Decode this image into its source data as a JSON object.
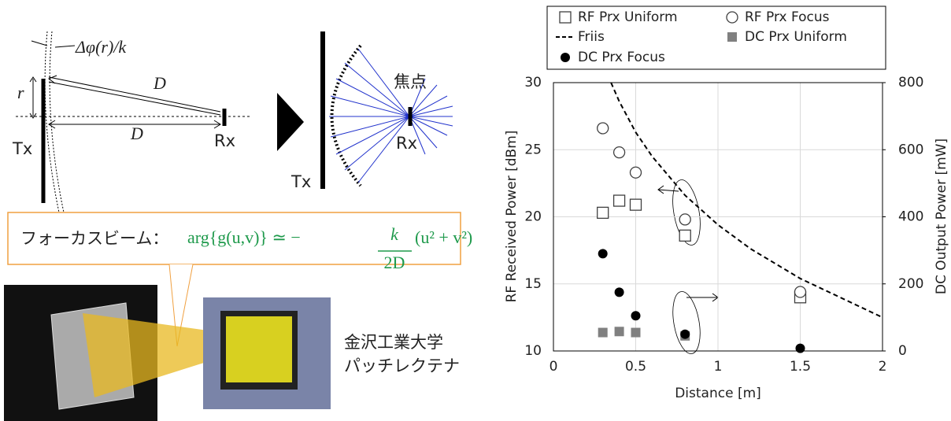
{
  "diagram": {
    "phase_label": "Δφ(r)/k",
    "r_label": "r",
    "path_label": "D",
    "axis_label": "D",
    "tx_left": "Tx",
    "rx_left": "Rx",
    "tx_right": "Tx",
    "focus_label": "焦点",
    "rx_right": "Rx",
    "beam_label": "フォーカスビーム：",
    "formula": {
      "lead": "arg{g(u,v)} ≃ −",
      "numerator": "k",
      "denominator": "2D",
      "tail": "(u² + v²)"
    },
    "maker": "金沢工業大学",
    "device": "パッチレクテナ"
  },
  "chart_data": {
    "type": "scatter",
    "x_label": "Distance [m]",
    "y_label": "RF Received Power [dBm]",
    "y2_label": "DC Output Power [mW]",
    "xlim": [
      0,
      2
    ],
    "xticks": [
      0,
      0.5,
      1,
      1.5,
      2
    ],
    "ylim": [
      10,
      30
    ],
    "yticks": [
      10,
      15,
      20,
      25,
      30
    ],
    "y2lim": [
      0,
      800
    ],
    "y2ticks": [
      0,
      200,
      400,
      600,
      800
    ],
    "grid": true,
    "legend": "top",
    "series": [
      {
        "name": "RF Prx Uniform",
        "marker": "open-square",
        "color": "#404040",
        "x": [
          0.3,
          0.4,
          0.5,
          0.8,
          1.5
        ],
        "values": [
          20.3,
          21.2,
          20.9,
          18.6,
          14.0
        ]
      },
      {
        "name": "RF Prx Focus",
        "marker": "open-circle",
        "color": "#404040",
        "x": [
          0.3,
          0.4,
          0.5,
          0.8,
          1.5
        ],
        "values": [
          26.6,
          24.8,
          23.3,
          19.8,
          14.4
        ]
      },
      {
        "name": "Friis",
        "marker": "dashed-line",
        "color": "#000000",
        "x": [
          0.35,
          0.4,
          0.5,
          0.6,
          0.8,
          1,
          1.2,
          1.5,
          2
        ],
        "values": [
          30,
          28.6,
          26.3,
          24.5,
          21.6,
          19.4,
          17.6,
          15.4,
          12.5
        ]
      },
      {
        "name": "DC Prx Uniform",
        "marker": "square",
        "color": "#808080",
        "axis": "y2",
        "x": [
          0.3,
          0.4,
          0.5,
          0.8
        ],
        "values": [
          55,
          58,
          55,
          45
        ]
      },
      {
        "name": "DC Prx Focus",
        "marker": "circle",
        "color": "#000000",
        "axis": "y2",
        "x": [
          0.3,
          0.4,
          0.5,
          0.8,
          1.5
        ],
        "values": [
          290,
          175,
          105,
          50,
          8
        ]
      }
    ]
  }
}
